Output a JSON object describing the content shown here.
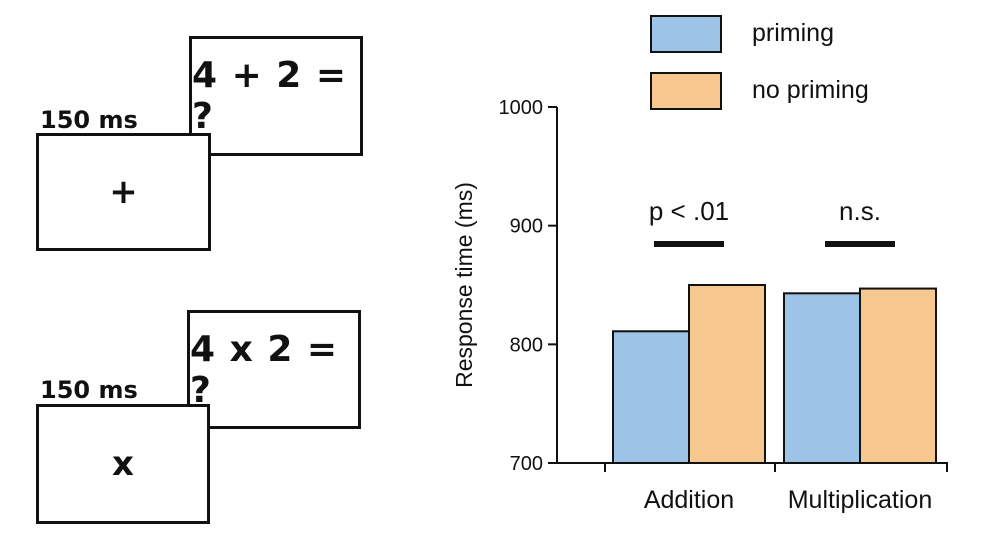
{
  "trials": [
    {
      "duration": "150 ms",
      "fixation": "+",
      "problem": "4 + 2 = ?"
    },
    {
      "duration": "150 ms",
      "fixation": "x",
      "problem": "4 x 2 = ?"
    }
  ],
  "chart_data": {
    "type": "bar",
    "categories": [
      "Addition",
      "Multiplication"
    ],
    "series": [
      {
        "name": "priming",
        "values": [
          811,
          843
        ],
        "color": "#9DC3E6"
      },
      {
        "name": "no priming",
        "values": [
          850,
          847
        ],
        "color": "#F7C790"
      }
    ],
    "ylabel": "Response time (ms)",
    "ylim": [
      700,
      1000
    ],
    "yticks": [
      700,
      800,
      900,
      1000
    ],
    "annotations": [
      {
        "category": "Addition",
        "text": "p < .01"
      },
      {
        "category": "Multiplication",
        "text": "n.s."
      }
    ],
    "legend_position": "top",
    "grid": false
  }
}
